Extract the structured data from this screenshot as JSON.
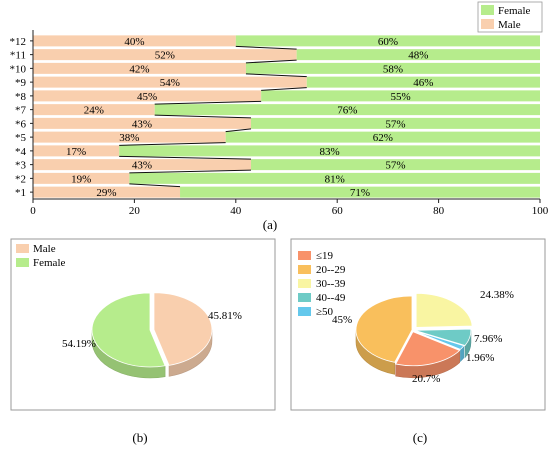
{
  "panel_labels": {
    "a": "(a)",
    "b": "(b)",
    "c": "(c)"
  },
  "chart_data": [
    {
      "type": "bar",
      "stacked": true,
      "orientation": "horizontal",
      "categories": [
        "*1",
        "*2",
        "*3",
        "*4",
        "*5",
        "*6",
        "*7",
        "*8",
        "*9",
        "*10",
        "*11",
        "*12"
      ],
      "series": [
        {
          "name": "Male",
          "color": "#f9cfae",
          "values": [
            29,
            19,
            43,
            17,
            38,
            43,
            24,
            45,
            54,
            42,
            52,
            40
          ],
          "labels": [
            "29%",
            "19%",
            "43%",
            "17%",
            "38%",
            "43%",
            "24%",
            "45%",
            "54%",
            "42%",
            "52%",
            "40%"
          ]
        },
        {
          "name": "Female",
          "color": "#b6ec8c",
          "values": [
            71,
            81,
            57,
            83,
            62,
            57,
            76,
            55,
            46,
            58,
            48,
            60
          ],
          "labels": [
            "71%",
            "81%",
            "57%",
            "83%",
            "62%",
            "57%",
            "76%",
            "55%",
            "46%",
            "58%",
            "48%",
            "60%"
          ]
        }
      ],
      "xlim": [
        0,
        100
      ],
      "xticks": [
        "0",
        "20",
        "40",
        "60",
        "80",
        "100"
      ],
      "legend": "top-right",
      "grid": false
    },
    {
      "type": "pie",
      "style": "3d",
      "labels": [
        "Male",
        "Female"
      ],
      "values": [
        45.81,
        54.19
      ],
      "value_labels": [
        "45.81%",
        "54.19%"
      ],
      "colors": [
        "#f9cfae",
        "#b6ec8c"
      ],
      "legend": "top-left"
    },
    {
      "type": "pie",
      "style": "3d",
      "labels": [
        "≤19",
        "20--29",
        "30--39",
        "40--49",
        "≥50"
      ],
      "values": [
        20.7,
        45,
        24.38,
        7.96,
        1.96
      ],
      "value_labels": [
        "20.7%",
        "45%",
        "24.38%",
        "7.96%",
        "1.96%"
      ],
      "colors": [
        "#f8926a",
        "#f9bf5c",
        "#f9f5a2",
        "#6ecbc6",
        "#64c8ec"
      ],
      "legend": "top-left"
    }
  ]
}
